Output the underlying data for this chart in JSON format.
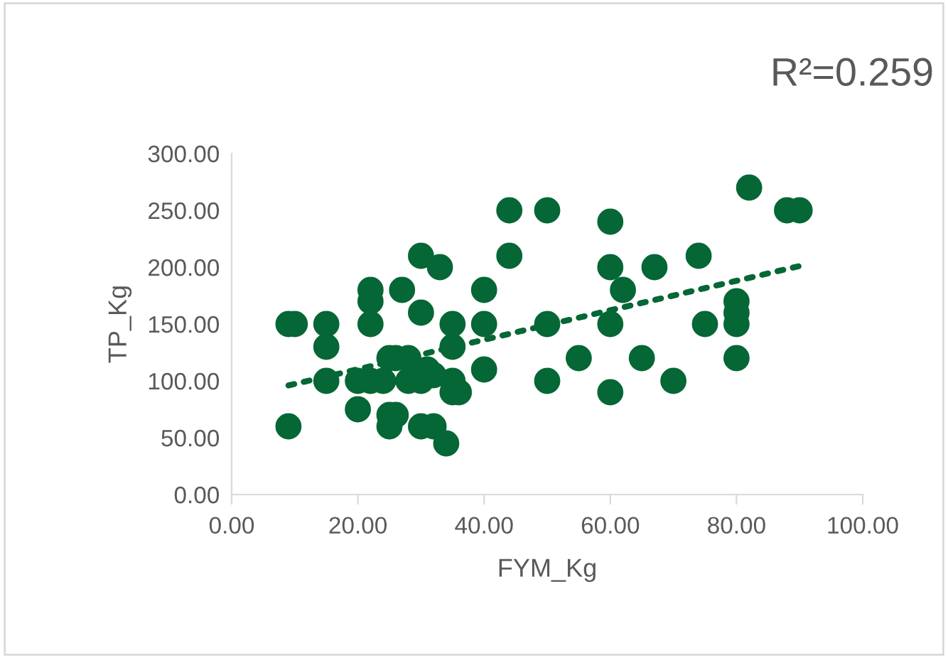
{
  "chart_data": {
    "type": "scatter",
    "xlabel": "FYM_Kg",
    "ylabel": "TP_Kg",
    "annotations": [
      "R²=0.259"
    ],
    "xlim": [
      0,
      100
    ],
    "xticks": [
      {
        "value": 0,
        "label": "0.00"
      },
      {
        "value": 20,
        "label": "20.00"
      },
      {
        "value": 40,
        "label": "40.00"
      },
      {
        "value": 60,
        "label": "60.00"
      },
      {
        "value": 80,
        "label": "80.00"
      },
      {
        "value": 100,
        "label": "100.00"
      }
    ],
    "ylim": [
      0,
      300
    ],
    "yticks": [
      {
        "value": 0,
        "label": "0.00"
      },
      {
        "value": 50,
        "label": "50.00"
      },
      {
        "value": 100,
        "label": "100.00"
      },
      {
        "value": 150,
        "label": "150.00"
      },
      {
        "value": 200,
        "label": "200.00"
      },
      {
        "value": 250,
        "label": "250.00"
      },
      {
        "value": 300,
        "label": "300.00"
      }
    ],
    "grid": false,
    "series": [
      {
        "marker": "circle",
        "color": "#056735",
        "x": [
          9,
          9,
          10,
          15,
          15,
          15,
          20,
          20,
          22,
          22,
          22,
          22,
          24,
          25,
          25,
          25,
          26,
          26,
          27,
          28,
          28,
          30,
          30,
          30,
          30,
          31,
          32,
          32,
          33,
          34,
          35,
          35,
          35,
          35,
          36,
          40,
          40,
          40,
          44,
          44,
          50,
          50,
          50,
          55,
          60,
          60,
          60,
          60,
          62,
          65,
          67,
          70,
          74,
          75,
          80,
          80,
          80,
          80,
          82,
          88,
          90
        ],
        "values": [
          60,
          150,
          150,
          150,
          130,
          100,
          75,
          100,
          100,
          180,
          170,
          150,
          100,
          70,
          60,
          120,
          120,
          70,
          180,
          100,
          120,
          210,
          160,
          100,
          60,
          110,
          105,
          60,
          200,
          45,
          150,
          130,
          100,
          90,
          90,
          180,
          150,
          110,
          250,
          210,
          250,
          150,
          100,
          120,
          240,
          200,
          150,
          90,
          180,
          120,
          200,
          100,
          210,
          150,
          170,
          160,
          150,
          120,
          270,
          250,
          250
        ]
      },
      {
        "type": "line",
        "marker": "none",
        "line_style": "dotted",
        "color": "#056735",
        "x": [
          9,
          90
        ],
        "values": [
          96,
          201
        ]
      }
    ]
  }
}
